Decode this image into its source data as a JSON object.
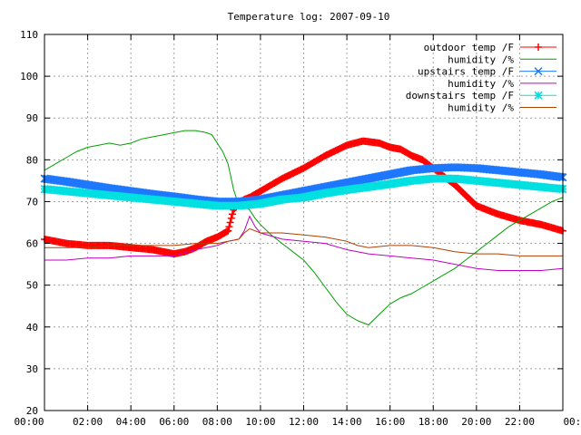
{
  "chart_data": {
    "type": "line",
    "title": "Temperature log: 2007-09-10",
    "xlabel": "",
    "ylabel": "",
    "ylim": [
      20,
      110
    ],
    "xlim": [
      0,
      24
    ],
    "y_ticks": [
      "20",
      "30",
      "40",
      "50",
      "60",
      "70",
      "80",
      "90",
      "100",
      "110"
    ],
    "x_ticks": [
      "00:00",
      "02:00",
      "04:00",
      "06:00",
      "08:00",
      "10:00",
      "12:00",
      "14:00",
      "16:00",
      "18:00",
      "20:00",
      "22:00",
      "00:00"
    ],
    "grid": true,
    "legend_position": "top-right",
    "series": [
      {
        "name": "outdoor temp /F",
        "color": "#ff0000",
        "marker": "plus",
        "x": [
          0,
          1,
          2,
          3,
          4,
          5,
          5.5,
          6,
          6.5,
          7,
          7.5,
          8,
          8.5,
          8.75,
          9,
          9.25,
          9.5,
          10,
          11,
          12,
          13,
          14,
          14.75,
          15.5,
          16,
          16.5,
          17,
          17.5,
          18,
          18.5,
          19,
          19.5,
          20,
          21,
          22,
          23,
          24
        ],
        "y": [
          61,
          60,
          59.5,
          59.5,
          59,
          58.5,
          58,
          57.5,
          58,
          59,
          60.5,
          61.5,
          63,
          68,
          69.5,
          70.5,
          71,
          72.5,
          75.5,
          78,
          81,
          83.5,
          84.5,
          84,
          83,
          82.5,
          81,
          80,
          78,
          76,
          74,
          71.5,
          69,
          67,
          65.5,
          64.5,
          63
        ]
      },
      {
        "name": "humidity /%",
        "color": "#00a000",
        "marker": "none",
        "x": [
          0,
          0.5,
          1,
          1.5,
          2,
          2.5,
          3,
          3.5,
          4,
          4.5,
          5,
          5.5,
          6,
          6.5,
          7,
          7.5,
          7.75,
          8,
          8.25,
          8.5,
          8.75,
          9,
          9.25,
          9.5,
          9.75,
          10,
          10.5,
          11,
          11.5,
          12,
          12.5,
          13,
          13.5,
          14,
          14.5,
          15,
          15.5,
          16,
          16.5,
          17,
          17.5,
          18,
          18.5,
          19,
          19.5,
          20,
          20.5,
          21,
          21.5,
          22,
          22.5,
          23,
          23.5,
          24
        ],
        "y": [
          77.5,
          79,
          80.5,
          82,
          83,
          83.5,
          84,
          83.5,
          84,
          85,
          85.5,
          86,
          86.5,
          87,
          87,
          86.5,
          86,
          84,
          82,
          79,
          73,
          69,
          69,
          68,
          66,
          64.5,
          62,
          60,
          58,
          56,
          53,
          49.5,
          46,
          43,
          41.5,
          40.5,
          43,
          45.5,
          47,
          48,
          49.5,
          51,
          52.5,
          54,
          56,
          58,
          60,
          62,
          64,
          65.5,
          67,
          68.5,
          70,
          71
        ]
      },
      {
        "name": "upstairs temp /F",
        "color": "#1e78ff",
        "marker": "cross",
        "x": [
          0,
          1,
          2,
          3,
          4,
          5,
          6,
          7,
          8,
          9,
          10,
          11,
          12,
          13,
          14,
          15,
          16,
          17,
          18,
          19,
          20,
          21,
          22,
          23,
          24
        ],
        "y": [
          75.5,
          74.8,
          74,
          73.2,
          72.5,
          71.8,
          71.2,
          70.5,
          70,
          70,
          70.5,
          71.5,
          72.5,
          73.5,
          74.5,
          75.5,
          76.5,
          77.5,
          78,
          78.2,
          78,
          77.5,
          77,
          76.5,
          75.8
        ]
      },
      {
        "name": "humidity /%",
        "color": "#c000c0",
        "marker": "none",
        "x": [
          0,
          1,
          2,
          3,
          4,
          5,
          6,
          7,
          8,
          8.5,
          9,
          9.25,
          9.5,
          9.75,
          10,
          11,
          12,
          13,
          14,
          15,
          16,
          17,
          18,
          19,
          20,
          21,
          22,
          23,
          24
        ],
        "y": [
          56,
          56,
          56.5,
          56.5,
          57,
          57,
          57,
          58.5,
          59.5,
          60.5,
          61,
          63,
          66.5,
          64,
          62.5,
          61,
          60.5,
          60,
          58.5,
          57.5,
          57,
          56.5,
          56,
          55,
          54,
          53.5,
          53.5,
          53.5,
          54
        ]
      },
      {
        "name": "downstairs temp /F",
        "color": "#00e0e0",
        "marker": "star",
        "x": [
          0,
          1,
          2,
          3,
          4,
          5,
          6,
          7,
          8,
          9,
          10,
          11,
          12,
          13,
          14,
          15,
          16,
          17,
          18,
          19,
          20,
          21,
          22,
          23,
          24
        ],
        "y": [
          73,
          72.5,
          72,
          71.5,
          71,
          70.5,
          70,
          69.5,
          69,
          69,
          69.5,
          70.5,
          71,
          72,
          72.8,
          73.5,
          74.2,
          75,
          75.5,
          75.5,
          75,
          74.5,
          74,
          73.5,
          73
        ]
      },
      {
        "name": "humidity /%",
        "color": "#b04000",
        "marker": "none",
        "x": [
          0,
          1,
          2,
          3,
          4,
          5,
          6,
          7,
          8,
          8.5,
          9,
          9.25,
          9.5,
          10,
          11,
          12,
          13,
          14,
          14.5,
          15,
          16,
          17,
          18,
          19,
          20,
          21,
          22,
          23,
          24
        ],
        "y": [
          59,
          59,
          59,
          59.5,
          59.5,
          59.5,
          59.5,
          60,
          60,
          60.5,
          61,
          62.5,
          63.5,
          62.5,
          62.5,
          62,
          61.5,
          60.5,
          59.5,
          59,
          59.5,
          59.5,
          59,
          58,
          57.5,
          57.5,
          57,
          57,
          57
        ]
      }
    ]
  }
}
